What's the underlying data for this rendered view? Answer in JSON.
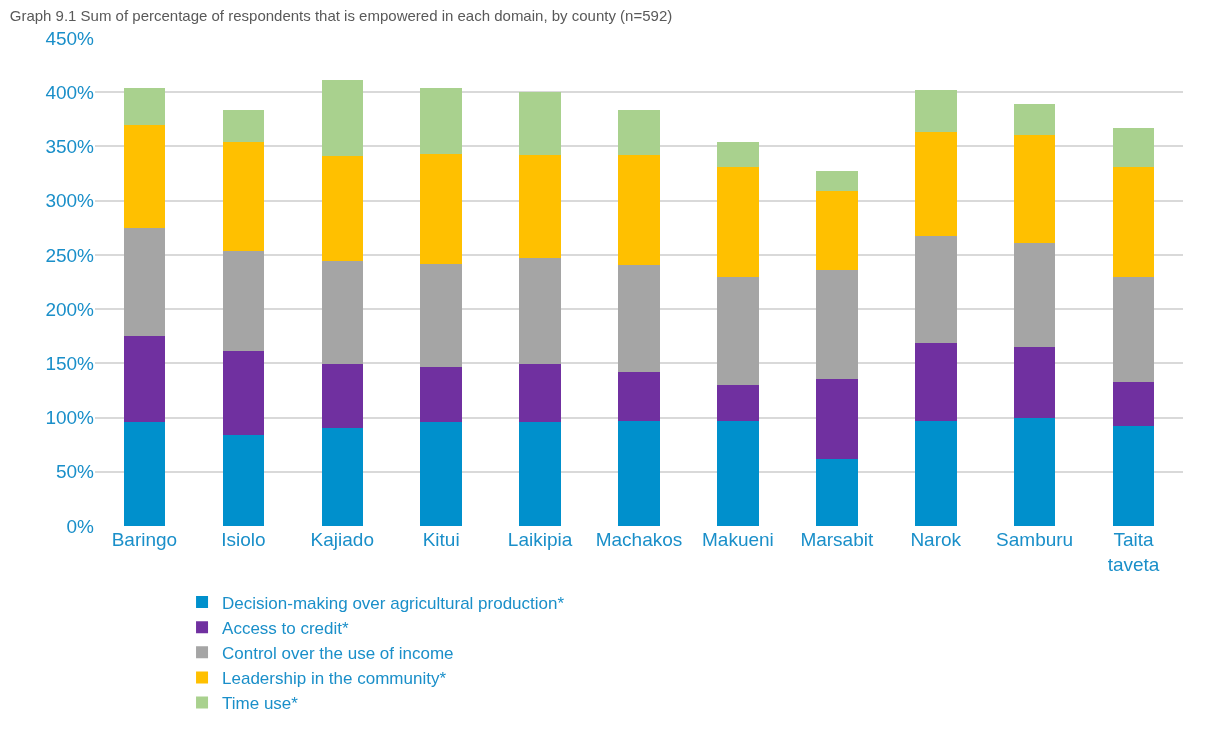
{
  "chart_data": {
    "type": "bar",
    "stacked": true,
    "title": "Graph 9.1 Sum of percentage of respondents that is empowered in each domain, by county (n=592)",
    "categories": [
      "Baringo",
      "Isiolo",
      "Kajiado",
      "Kitui",
      "Laikipia",
      "Machakos",
      "Makueni",
      "Marsabit",
      "Narok",
      "Samburu",
      "Taita taveta"
    ],
    "series": [
      {
        "name": "Decision-making over agricultural production*",
        "color": "#0090cc",
        "values": [
          96,
          84,
          90,
          96,
          96,
          97,
          97,
          62,
          97,
          100,
          92
        ]
      },
      {
        "name": "Access to credit*",
        "color": "#7030a0",
        "values": [
          79,
          77,
          59,
          51,
          53,
          45,
          33,
          74,
          72,
          65,
          41
        ]
      },
      {
        "name": "Control over the use of income",
        "color": "#a5a5a5",
        "values": [
          100,
          93,
          95,
          95,
          98,
          99,
          100,
          100,
          98,
          96,
          97
        ]
      },
      {
        "name": "Leadership in the community*",
        "color": "#ffc000",
        "values": [
          95,
          100,
          97,
          101,
          95,
          101,
          101,
          73,
          96,
          100,
          101
        ]
      },
      {
        "name": "Time use*",
        "color": "#a9d18e",
        "values": [
          34,
          30,
          70,
          61,
          58,
          42,
          23,
          18,
          39,
          28,
          36
        ]
      }
    ],
    "ylim": [
      0,
      450
    ],
    "yticks": [
      {
        "value": 0,
        "label": "0%"
      },
      {
        "value": 50,
        "label": "50%"
      },
      {
        "value": 100,
        "label": "100%"
      },
      {
        "value": 150,
        "label": "150%"
      },
      {
        "value": 200,
        "label": "200%"
      },
      {
        "value": 250,
        "label": "250%"
      },
      {
        "value": 300,
        "label": "300%"
      },
      {
        "value": 350,
        "label": "350%"
      },
      {
        "value": 400,
        "label": "400%"
      },
      {
        "value": 450,
        "label": "450%"
      }
    ],
    "grid": "y",
    "legend": "bottom"
  }
}
